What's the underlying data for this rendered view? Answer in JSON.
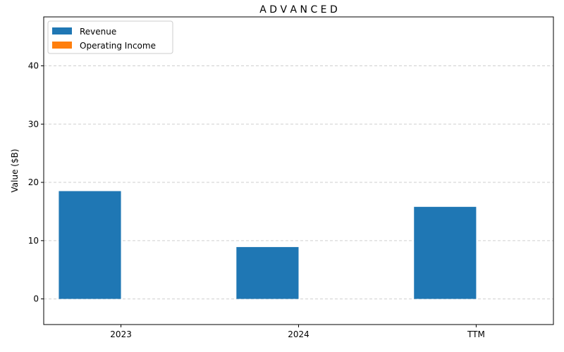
{
  "chart_data": {
    "type": "bar",
    "title": "A D V A N C E D",
    "xlabel": "",
    "ylabel": "Value ($B)",
    "categories": [
      "2023",
      "2024",
      "TTM"
    ],
    "series": [
      {
        "name": "Revenue",
        "values": [
          18.5,
          8.9,
          15.8
        ],
        "color": "#1f77b4"
      },
      {
        "name": "Operating Income",
        "values": [
          0,
          0,
          0
        ],
        "color": "#ff7f0e"
      }
    ],
    "ylim": [
      -4.4,
      48.4
    ],
    "yticks": [
      0,
      10,
      20,
      30,
      40
    ],
    "grid": "y-dashed",
    "legend_position": "top-left"
  }
}
